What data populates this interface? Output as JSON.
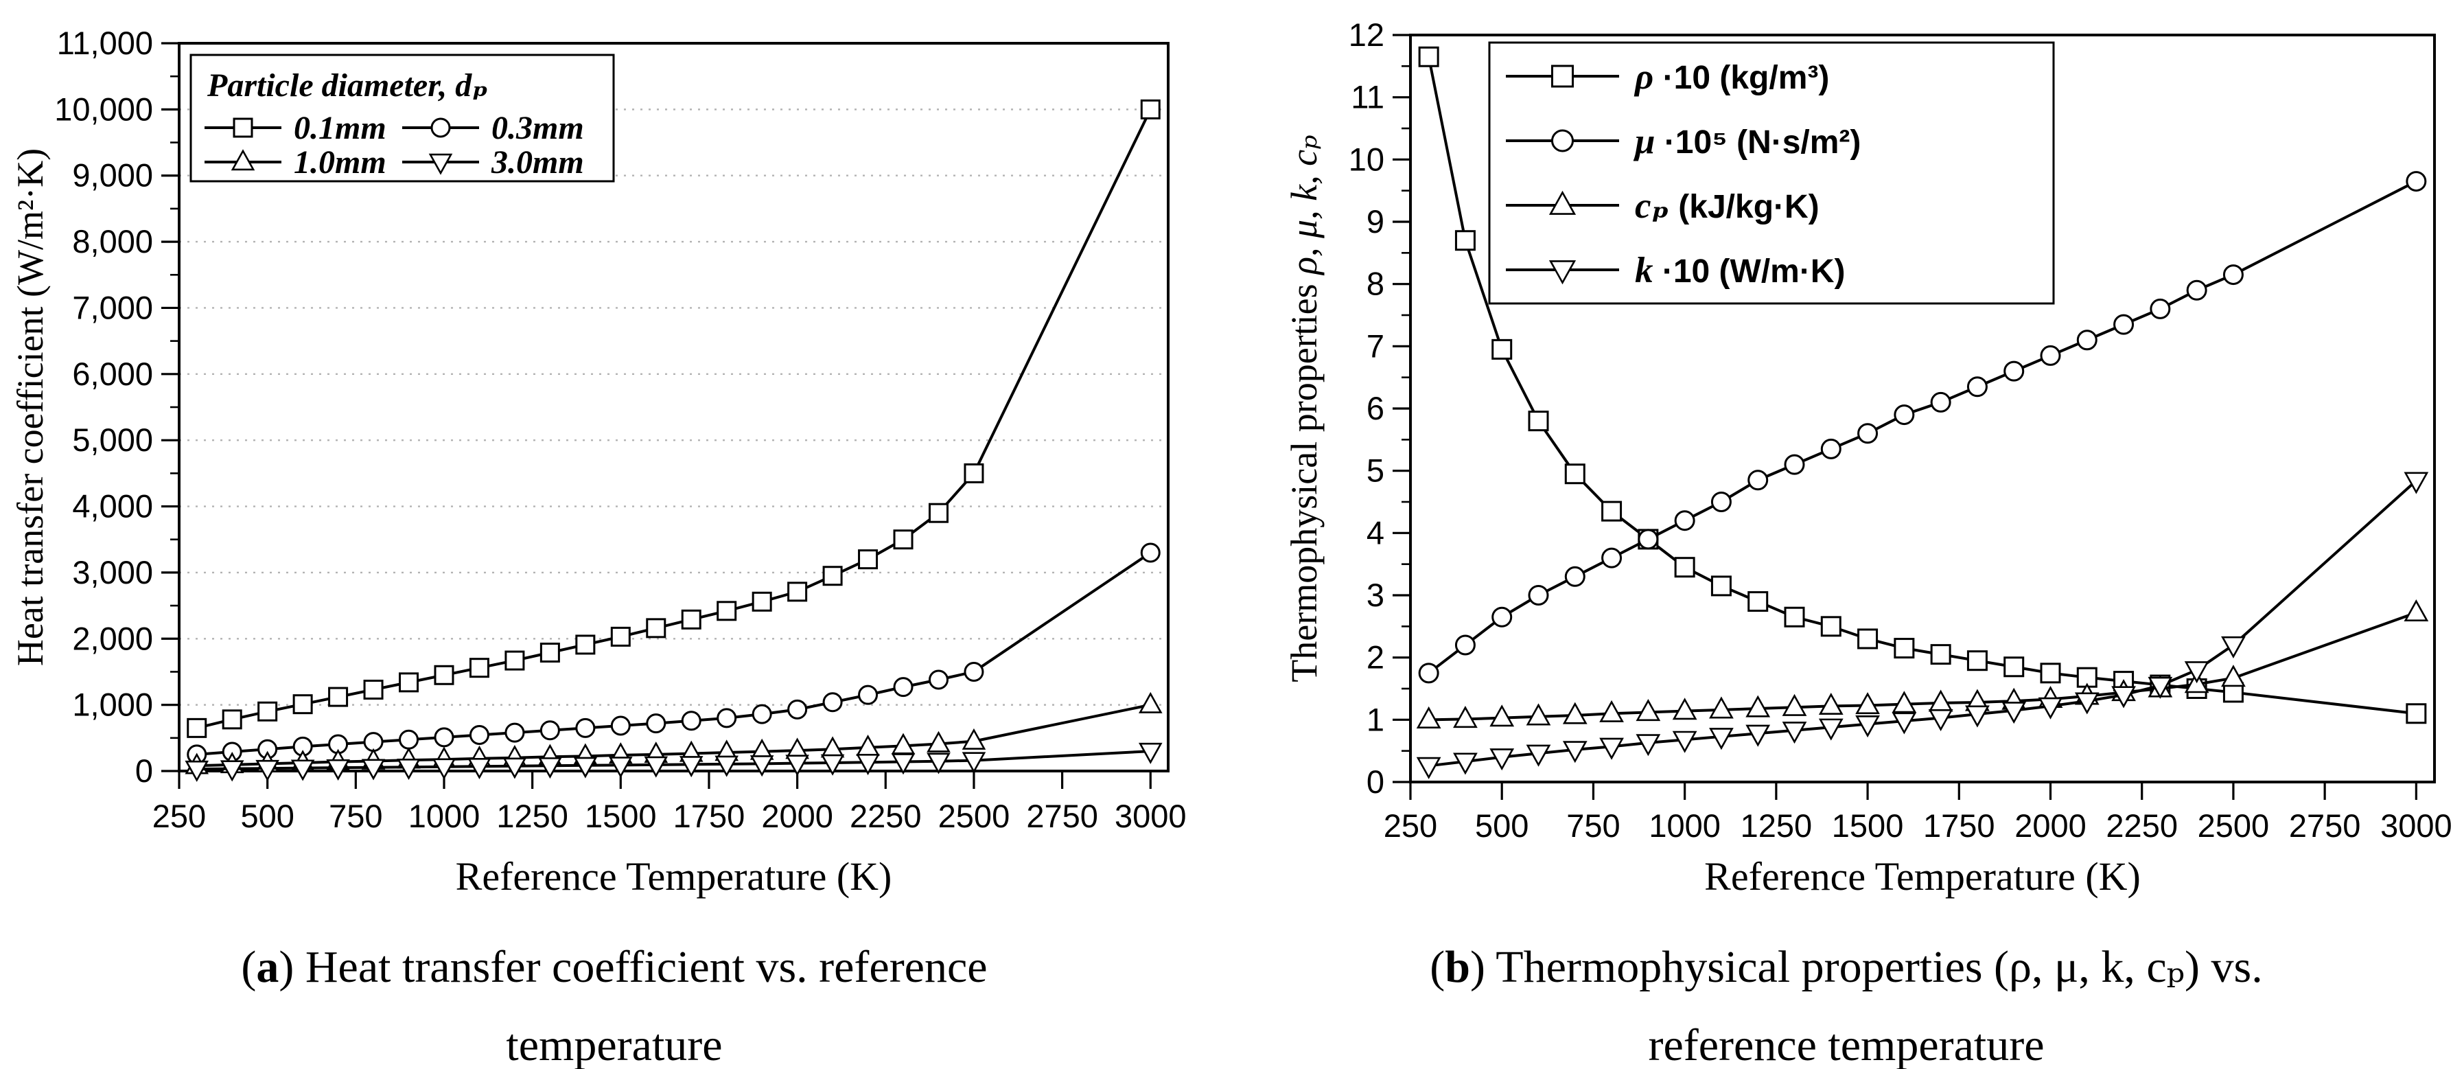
{
  "colors": {
    "ink": "#000000",
    "grid": "#b3b3b3",
    "background": "#ffffff",
    "marker_fill": "#ffffff"
  },
  "captions": {
    "a": {
      "open": "(",
      "letter": "a",
      "close": ")",
      "line1": "Heat transfer coefficient vs. reference",
      "line2": "temperature"
    },
    "b": {
      "open": "(",
      "letter": "b",
      "close": ")",
      "line1": "Thermophysical properties (ρ, μ, k, cₚ) vs.",
      "line2": "reference temperature"
    }
  },
  "chart_data": [
    {
      "id": "a",
      "type": "line",
      "xlabel": "Reference Temperature (K)",
      "ylabel": "Heat transfer coefficient (W/m²·K)",
      "xlim": [
        250,
        3050
      ],
      "ylim": [
        0,
        11000
      ],
      "x_ticks": [
        250,
        500,
        750,
        1000,
        1250,
        1500,
        1750,
        2000,
        2250,
        2500,
        2750,
        3000
      ],
      "x_tick_labels": [
        "250",
        "500",
        "750",
        "1000",
        "1250",
        "1500",
        "1750",
        "2000",
        "2250",
        "2500",
        "2750",
        "3000"
      ],
      "y_ticks": [
        0,
        1000,
        2000,
        3000,
        4000,
        5000,
        6000,
        7000,
        8000,
        9000,
        10000,
        11000
      ],
      "y_tick_labels": [
        "0",
        "1,000",
        "2,000",
        "3,000",
        "4,000",
        "5,000",
        "6,000",
        "7,000",
        "8,000",
        "9,000",
        "10,000",
        "11,000"
      ],
      "y_minor_step": 500,
      "grid": {
        "horizontal": true,
        "style": "dotted"
      },
      "x": [
        300,
        400,
        500,
        600,
        700,
        800,
        900,
        1000,
        1100,
        1200,
        1300,
        1400,
        1500,
        1600,
        1700,
        1800,
        1900,
        2000,
        2100,
        2200,
        2300,
        2400,
        2500,
        3000
      ],
      "series": [
        {
          "name": "0.1mm",
          "marker": "square",
          "values": [
            650,
            780,
            900,
            1010,
            1120,
            1230,
            1340,
            1450,
            1560,
            1670,
            1790,
            1910,
            2030,
            2160,
            2290,
            2420,
            2560,
            2710,
            2950,
            3200,
            3500,
            3900,
            4500,
            10000
          ]
        },
        {
          "name": "0.3mm",
          "marker": "circle",
          "values": [
            250,
            290,
            330,
            370,
            405,
            440,
            475,
            510,
            545,
            580,
            615,
            650,
            685,
            720,
            760,
            800,
            860,
            930,
            1040,
            1150,
            1270,
            1380,
            1500,
            3300
          ]
        },
        {
          "name": "1.0mm",
          "marker": "triangle-up",
          "values": [
            80,
            95,
            110,
            125,
            140,
            150,
            165,
            175,
            190,
            200,
            215,
            225,
            240,
            250,
            265,
            280,
            295,
            310,
            330,
            355,
            380,
            410,
            450,
            1000
          ]
        },
        {
          "name": "3.0mm",
          "marker": "triangle-down",
          "values": [
            30,
            35,
            40,
            45,
            50,
            55,
            60,
            65,
            70,
            75,
            80,
            85,
            90,
            95,
            100,
            105,
            110,
            118,
            125,
            132,
            140,
            148,
            160,
            300
          ]
        }
      ],
      "legend": {
        "layout": "grid",
        "title": "Particle diameter, dₚ",
        "items": [
          {
            "label": "0.1mm",
            "marker": "square"
          },
          {
            "label": "0.3mm",
            "marker": "circle"
          },
          {
            "label": "1.0mm",
            "marker": "triangle-up"
          },
          {
            "label": "3.0mm",
            "marker": "triangle-down"
          }
        ]
      }
    },
    {
      "id": "b",
      "type": "line",
      "xlabel": "Reference Temperature (K)",
      "ylabel_main": "Thermophysical properties ",
      "ylabel_symbols": "ρ, μ, k, cₚ",
      "xlim": [
        250,
        3050
      ],
      "ylim": [
        0,
        12
      ],
      "x_ticks": [
        250,
        500,
        750,
        1000,
        1250,
        1500,
        1750,
        2000,
        2250,
        2500,
        2750,
        3000
      ],
      "x_tick_labels": [
        "250",
        "500",
        "750",
        "1000",
        "1250",
        "1500",
        "1750",
        "2000",
        "2250",
        "2500",
        "2750",
        "3000"
      ],
      "y_ticks": [
        0,
        1,
        2,
        3,
        4,
        5,
        6,
        7,
        8,
        9,
        10,
        11,
        12
      ],
      "y_tick_labels": [
        "0",
        "1",
        "2",
        "3",
        "4",
        "5",
        "6",
        "7",
        "8",
        "9",
        "10",
        "11",
        "12"
      ],
      "y_minor_step": 0.5,
      "grid": {
        "horizontal": false
      },
      "x": [
        300,
        400,
        500,
        600,
        700,
        800,
        900,
        1000,
        1100,
        1200,
        1300,
        1400,
        1500,
        1600,
        1700,
        1800,
        1900,
        2000,
        2100,
        2200,
        2300,
        2400,
        2500,
        3000
      ],
      "series": [
        {
          "name": "ρ·10 (kg/m³)",
          "marker": "square",
          "values": [
            11.65,
            8.7,
            6.95,
            5.8,
            4.95,
            4.35,
            3.9,
            3.45,
            3.15,
            2.9,
            2.65,
            2.5,
            2.3,
            2.15,
            2.05,
            1.95,
            1.85,
            1.75,
            1.68,
            1.62,
            1.56,
            1.5,
            1.44,
            1.1
          ]
        },
        {
          "name": "μ·10⁵ (N·s/m²)",
          "marker": "circle",
          "values": [
            1.75,
            2.2,
            2.65,
            3.0,
            3.3,
            3.6,
            3.9,
            4.2,
            4.5,
            4.85,
            5.1,
            5.35,
            5.6,
            5.9,
            6.1,
            6.35,
            6.6,
            6.85,
            7.1,
            7.35,
            7.6,
            7.9,
            8.15,
            9.65
          ]
        },
        {
          "name": "cₚ (kJ/kg·K)",
          "marker": "triangle-up",
          "values": [
            1.0,
            1.01,
            1.03,
            1.05,
            1.07,
            1.1,
            1.12,
            1.14,
            1.16,
            1.18,
            1.2,
            1.22,
            1.23,
            1.25,
            1.27,
            1.28,
            1.3,
            1.33,
            1.38,
            1.44,
            1.5,
            1.57,
            1.67,
            2.72
          ]
        },
        {
          "name": "k·10 (W/m·K)",
          "marker": "triangle-down",
          "values": [
            0.26,
            0.33,
            0.4,
            0.46,
            0.52,
            0.57,
            0.63,
            0.68,
            0.73,
            0.78,
            0.83,
            0.88,
            0.93,
            0.98,
            1.03,
            1.09,
            1.15,
            1.22,
            1.3,
            1.4,
            1.55,
            1.8,
            2.2,
            4.84
          ]
        }
      ],
      "legend": {
        "layout": "rows",
        "items": [
          {
            "sym": "ρ",
            "mid": " ·10 ",
            "unit": "(kg/m³)",
            "marker": "square"
          },
          {
            "sym": "μ",
            "mid": " ·10⁵ ",
            "unit": "(N·s/m²)",
            "marker": "circle"
          },
          {
            "sym": "cₚ",
            "mid": "  ",
            "unit": "(kJ/kg·K)",
            "marker": "triangle-up"
          },
          {
            "sym": "k",
            "mid": " ·10 ",
            "unit": "(W/m·K)",
            "marker": "triangle-down"
          }
        ]
      }
    }
  ]
}
